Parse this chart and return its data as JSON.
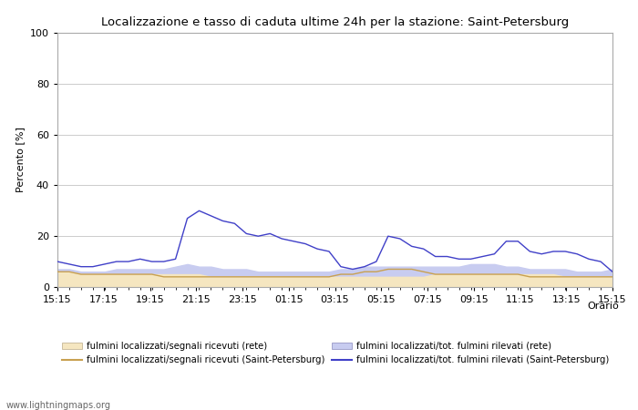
{
  "title": "Localizzazione e tasso di caduta ultime 24h per la stazione: Saint-Petersburg",
  "ylabel": "Percento [%]",
  "xlabel": "Orario",
  "ylim": [
    0,
    100
  ],
  "yticks": [
    0,
    20,
    40,
    60,
    80,
    100
  ],
  "xtick_labels": [
    "15:15",
    "17:15",
    "19:15",
    "21:15",
    "23:15",
    "01:15",
    "03:15",
    "05:15",
    "07:15",
    "09:15",
    "11:15",
    "13:15",
    "15:15"
  ],
  "watermark": "www.lightningmaps.org",
  "color_fill_rete_segnali": "#f5e6c0",
  "color_fill_rete_fulmini": "#c8ccf0",
  "color_line_sp_segnali": "#c8a050",
  "color_line_sp_fulmini": "#4040c8",
  "legend": [
    {
      "label": "fulmini localizzati/segnali ricevuti (rete)",
      "type": "fill",
      "color": "#f5e6c0"
    },
    {
      "label": "fulmini localizzati/segnali ricevuti (Saint-Petersburg)",
      "type": "line",
      "color": "#c8a050"
    },
    {
      "label": "fulmini localizzati/tot. fulmini rilevati (rete)",
      "type": "fill",
      "color": "#c8ccf0"
    },
    {
      "label": "fulmini localizzati/tot. fulmini rilevati (Saint-Petersburg)",
      "type": "line",
      "color": "#4040c8"
    }
  ],
  "x_indices": [
    0,
    1,
    2,
    3,
    4,
    5,
    6,
    7,
    8,
    9,
    10,
    11,
    12,
    13,
    14,
    15,
    16,
    17,
    18,
    19,
    20,
    21,
    22,
    23,
    24,
    25,
    26,
    27,
    28,
    29,
    30,
    31,
    32,
    33,
    34,
    35,
    36,
    37,
    38,
    39,
    40,
    41,
    42,
    43,
    44,
    45,
    46,
    47
  ],
  "rete_segnali": [
    6,
    6,
    5,
    5,
    5,
    5,
    5,
    5,
    5,
    5,
    5,
    5,
    5,
    4,
    4,
    4,
    4,
    4,
    4,
    4,
    4,
    4,
    4,
    4,
    4,
    4,
    4,
    4,
    4,
    4,
    4,
    4,
    5,
    5,
    5,
    5,
    5,
    5,
    5,
    5,
    5,
    5,
    5,
    4,
    4,
    4,
    4,
    4
  ],
  "rete_fulmini": [
    7,
    7,
    6,
    6,
    6,
    7,
    7,
    7,
    7,
    7,
    8,
    9,
    8,
    8,
    7,
    7,
    7,
    6,
    6,
    6,
    6,
    6,
    6,
    6,
    7,
    7,
    8,
    8,
    8,
    8,
    8,
    8,
    8,
    8,
    8,
    9,
    9,
    9,
    8,
    8,
    7,
    7,
    7,
    7,
    6,
    6,
    6,
    7
  ],
  "sp_segnali": [
    6,
    6,
    5,
    5,
    5,
    5,
    5,
    5,
    5,
    4,
    4,
    4,
    4,
    4,
    4,
    4,
    4,
    4,
    4,
    4,
    4,
    4,
    4,
    4,
    5,
    5,
    6,
    6,
    7,
    7,
    7,
    6,
    5,
    5,
    5,
    5,
    5,
    5,
    5,
    5,
    4,
    4,
    4,
    4,
    4,
    4,
    4,
    4
  ],
  "sp_fulmini": [
    10,
    9,
    8,
    8,
    9,
    10,
    10,
    11,
    10,
    10,
    11,
    27,
    30,
    28,
    26,
    25,
    21,
    20,
    21,
    19,
    18,
    17,
    15,
    14,
    8,
    7,
    8,
    10,
    20,
    19,
    16,
    15,
    12,
    12,
    11,
    11,
    12,
    13,
    18,
    18,
    14,
    13,
    14,
    14,
    13,
    11,
    10,
    6
  ]
}
